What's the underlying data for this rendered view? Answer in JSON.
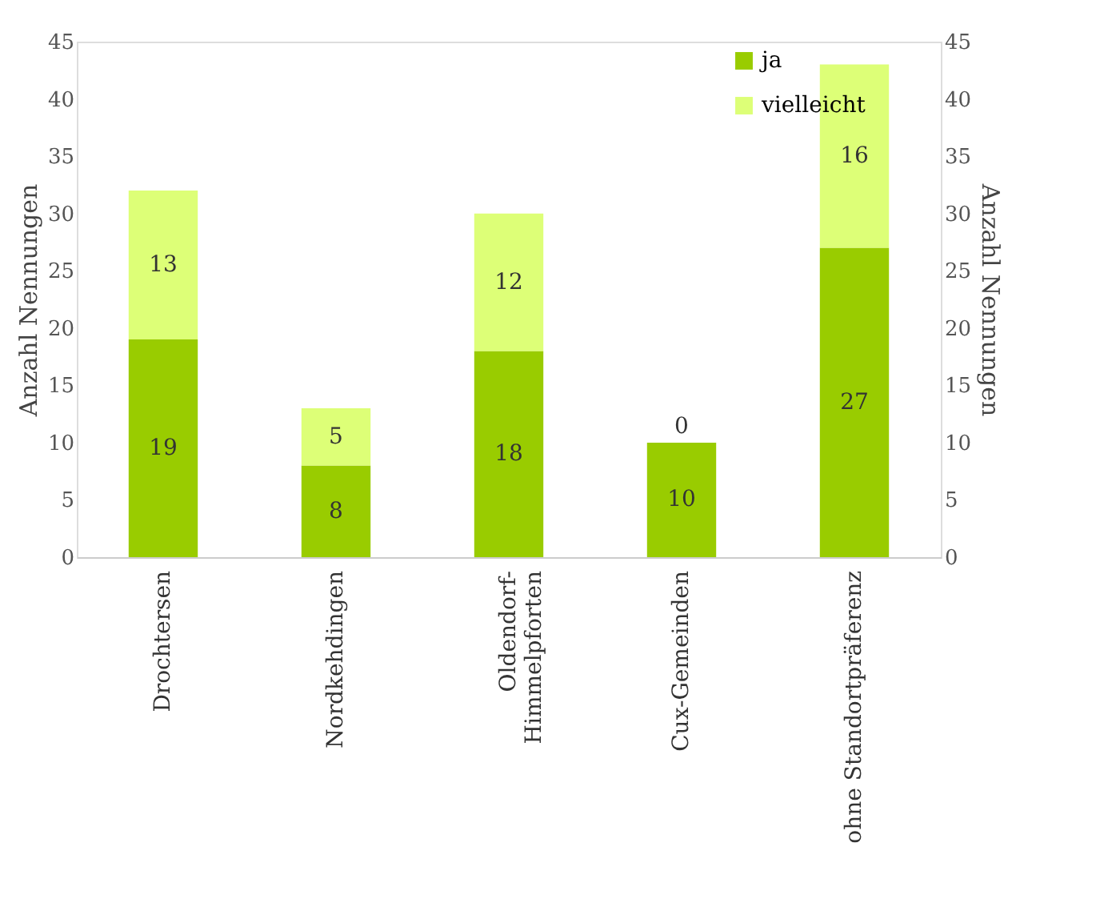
{
  "chart_data": {
    "type": "bar",
    "stacked": true,
    "categories": [
      "Drochtersen",
      "Nordkehdingen",
      "Oldendorf-\nHimmelpforten",
      "Cux-Gemeinden",
      "ohne Standortpräferenz"
    ],
    "series": [
      {
        "name": "ja",
        "color": "#99cc00",
        "values": [
          19,
          8,
          18,
          10,
          27
        ]
      },
      {
        "name": "vielleicht",
        "color": "#ddff77",
        "values": [
          13,
          5,
          12,
          0,
          16
        ]
      }
    ],
    "ylabel": "Anzahl Nennungen",
    "y2label": "Anzahl Nennungen",
    "ylim": [
      0,
      45
    ],
    "yticks": [
      0,
      5,
      10,
      15,
      20,
      25,
      30,
      35,
      40,
      45
    ],
    "y2lim": [
      0,
      45
    ],
    "y2ticks": [
      0,
      5,
      10,
      15,
      20,
      25,
      30,
      35,
      40,
      45
    ],
    "data_labels": true,
    "grid": false,
    "legend": "top right"
  }
}
